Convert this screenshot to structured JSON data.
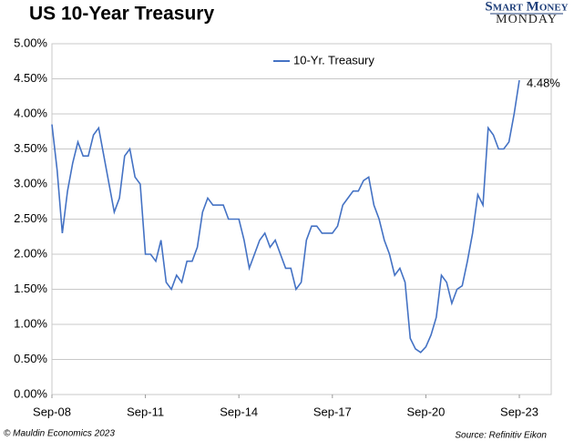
{
  "chart_data": {
    "type": "line",
    "title": "US 10-Year Treasury",
    "logo_top": "Smart Money",
    "logo_bottom": "MONDAY",
    "copyright": "© Mauldin Economics 2023",
    "source": "Source: Refinitiv Eikon",
    "categories": [
      "Sep-08",
      null,
      null,
      null,
      null,
      null,
      null,
      null,
      null,
      null,
      null,
      null,
      null,
      null,
      null,
      null,
      null,
      null,
      "Sep-11",
      null,
      null,
      null,
      null,
      null,
      null,
      null,
      null,
      null,
      null,
      null,
      null,
      null,
      null,
      null,
      null,
      null,
      "Sep-14",
      null,
      null,
      null,
      null,
      null,
      null,
      null,
      null,
      null,
      null,
      null,
      null,
      null,
      null,
      null,
      null,
      null,
      "Sep-17",
      null,
      null,
      null,
      null,
      null,
      null,
      null,
      null,
      null,
      null,
      null,
      null,
      null,
      null,
      null,
      null,
      null,
      "Sep-20",
      null,
      null,
      null,
      null,
      null,
      null,
      null,
      null,
      null,
      null,
      null,
      null,
      null,
      null,
      null,
      null,
      null,
      "Sep-23"
    ],
    "series": [
      {
        "name": "10-Yr. Treasury",
        "color": "#4472c4",
        "values": [
          3.85,
          3.2,
          2.3,
          2.9,
          3.3,
          3.6,
          3.4,
          3.4,
          3.7,
          3.8,
          3.4,
          3.0,
          2.6,
          2.8,
          3.4,
          3.5,
          3.1,
          3.0,
          2.0,
          2.0,
          1.9,
          2.2,
          1.6,
          1.5,
          1.7,
          1.6,
          1.9,
          1.9,
          2.1,
          2.6,
          2.8,
          2.7,
          2.7,
          2.7,
          2.5,
          2.5,
          2.5,
          2.2,
          1.8,
          2.0,
          2.2,
          2.3,
          2.1,
          2.2,
          2.0,
          1.8,
          1.8,
          1.5,
          1.6,
          2.2,
          2.4,
          2.4,
          2.3,
          2.3,
          2.3,
          2.4,
          2.7,
          2.8,
          2.9,
          2.9,
          3.05,
          3.1,
          2.7,
          2.5,
          2.2,
          2.0,
          1.7,
          1.8,
          1.6,
          0.8,
          0.65,
          0.6,
          0.68,
          0.85,
          1.1,
          1.7,
          1.6,
          1.3,
          1.5,
          1.55,
          1.9,
          2.3,
          2.85,
          2.7,
          3.8,
          3.7,
          3.5,
          3.5,
          3.6,
          4.0,
          4.48
        ],
        "value_labels": [
          null,
          null,
          null,
          null,
          null,
          null,
          null,
          null,
          null,
          null,
          null,
          null,
          null,
          null,
          null,
          null,
          null,
          null,
          null,
          null,
          null,
          null,
          null,
          null,
          null,
          null,
          null,
          null,
          null,
          null,
          null,
          null,
          null,
          null,
          null,
          null,
          null,
          null,
          null,
          null,
          null,
          null,
          null,
          null,
          null,
          null,
          null,
          null,
          null,
          null,
          null,
          null,
          null,
          null,
          null,
          null,
          null,
          null,
          null,
          null,
          null,
          null,
          null,
          null,
          null,
          null,
          null,
          null,
          null,
          null,
          null,
          null,
          null,
          null,
          null,
          null,
          null,
          null,
          null,
          null,
          null,
          null,
          null,
          null,
          null,
          null,
          null,
          null,
          null,
          null,
          "4.48%"
        ]
      }
    ],
    "ylim": [
      0,
      5
    ],
    "yticks": [
      {
        "value": 0,
        "label": "0.00%"
      },
      {
        "value": 0.5,
        "label": "0.50%"
      },
      {
        "value": 1,
        "label": "1.00%"
      },
      {
        "value": 1.5,
        "label": "1.50%"
      },
      {
        "value": 2,
        "label": "2.00%"
      },
      {
        "value": 2.5,
        "label": "2.50%"
      },
      {
        "value": 3,
        "label": "3.00%"
      },
      {
        "value": 3.5,
        "label": "3.50%"
      },
      {
        "value": 4,
        "label": "4.00%"
      },
      {
        "value": 4.5,
        "label": "4.50%"
      },
      {
        "value": 5,
        "label": "5.00%"
      }
    ],
    "grid": true,
    "legend": "top"
  }
}
